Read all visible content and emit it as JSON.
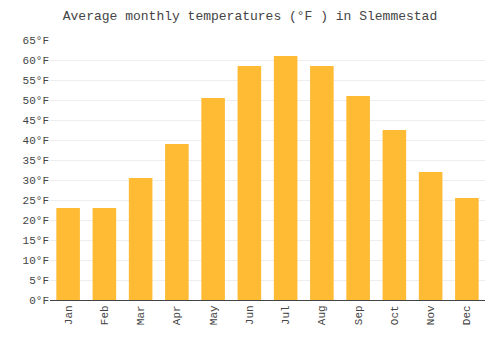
{
  "chart_data": {
    "type": "bar",
    "title": "Average monthly temperatures (°F ) in Slemmestad",
    "categories": [
      "Jan",
      "Feb",
      "Mar",
      "Apr",
      "May",
      "Jun",
      "Jul",
      "Aug",
      "Sep",
      "Oct",
      "Nov",
      "Dec"
    ],
    "values": [
      23,
      23,
      30.5,
      39,
      50.5,
      58.5,
      61,
      58.5,
      51,
      42.5,
      32,
      25.5
    ],
    "color": "#FFBB33",
    "ylim": [
      0,
      65
    ],
    "yticks": [
      {
        "value": 0,
        "label": "0°F"
      },
      {
        "value": 5,
        "label": "5°F"
      },
      {
        "value": 10,
        "label": "10°F"
      },
      {
        "value": 15,
        "label": "15°F"
      },
      {
        "value": 20,
        "label": "20°F"
      },
      {
        "value": 25,
        "label": "25°F"
      },
      {
        "value": 30,
        "label": "30°F"
      },
      {
        "value": 35,
        "label": "35°F"
      },
      {
        "value": 40,
        "label": "40°F"
      },
      {
        "value": 45,
        "label": "45°F"
      },
      {
        "value": 50,
        "label": "50°F"
      },
      {
        "value": 55,
        "label": "55°F"
      },
      {
        "value": 60,
        "label": "60°F"
      },
      {
        "value": 65,
        "label": "65°F"
      }
    ],
    "grid": true
  }
}
